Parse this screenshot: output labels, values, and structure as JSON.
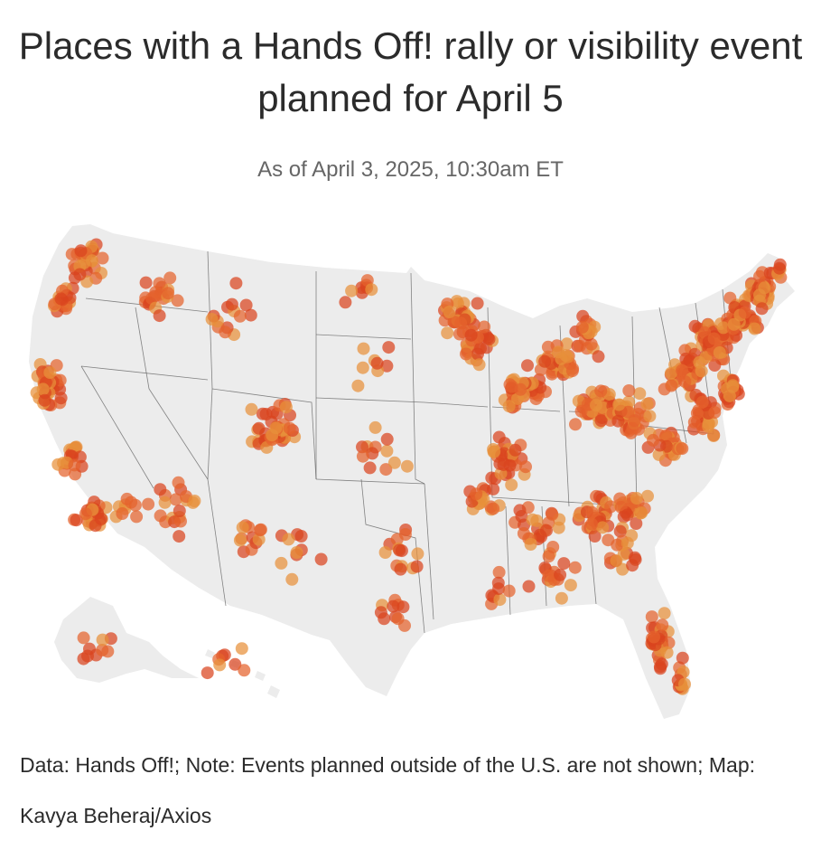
{
  "title": "Places with a Hands Off! rally or visibility event planned for April 5",
  "subtitle": "As of April 3, 2025, 10:30am ET",
  "footnote": {
    "data": "Data: Hands Off!;",
    "note": "Note: Events planned outside of the U.S. are not shown;",
    "credit": "Map: Kavya Beheraj/Axios"
  },
  "map": {
    "land_color": "#ececec",
    "border_color": "#555555",
    "dot_colors": [
      "#e8903a",
      "#e4622c",
      "#d9441e"
    ]
  }
}
